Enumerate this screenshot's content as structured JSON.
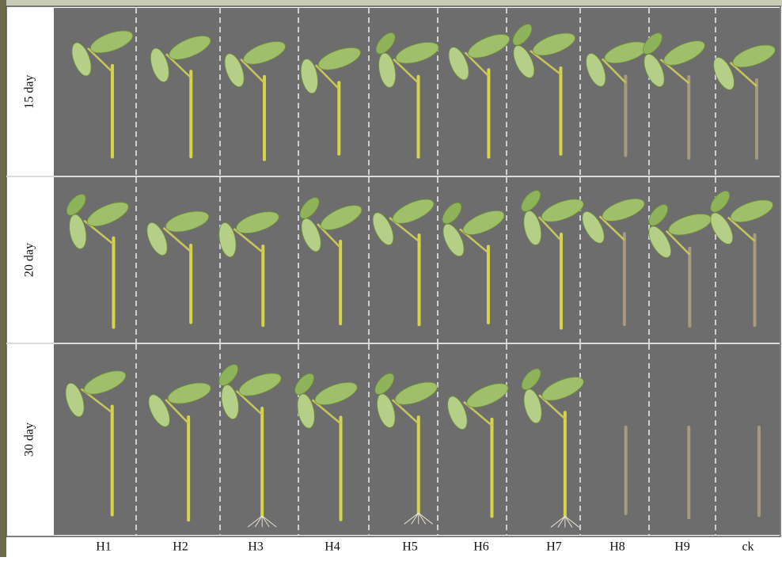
{
  "row_labels": [
    "15 day",
    "20 day",
    "30 day"
  ],
  "column_labels": [
    "H1",
    "H2",
    "H3",
    "H4",
    "H5",
    "H6",
    "H7",
    "H8",
    "H9",
    "ck"
  ]
}
